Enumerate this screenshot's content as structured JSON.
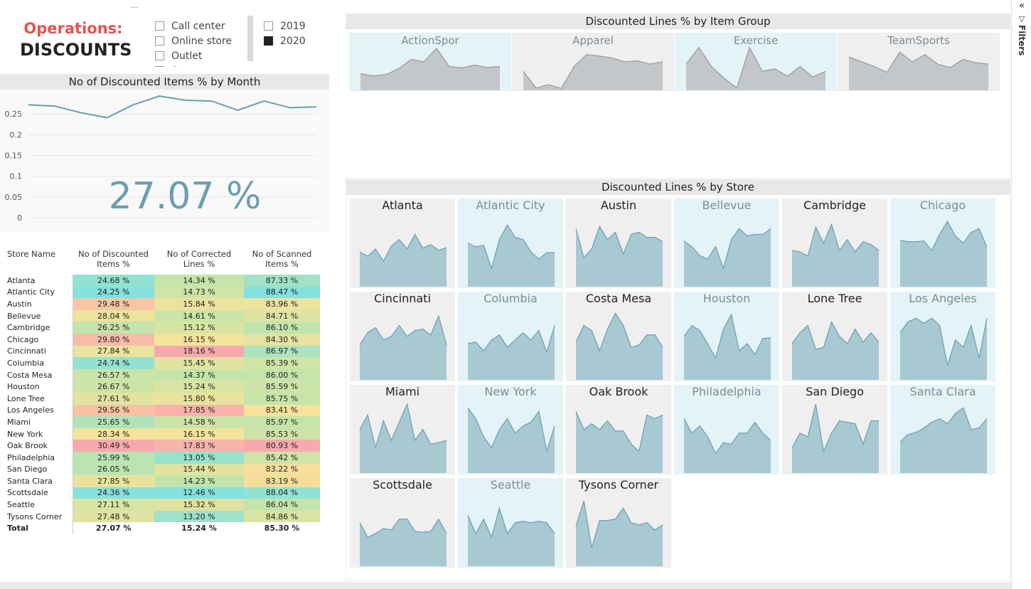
{
  "header": {
    "title_1": "Operations:",
    "title_2": "DISCOUNTS"
  },
  "channel_slicer": {
    "items": [
      "Call center",
      "Online store",
      "Outlet",
      "Store"
    ]
  },
  "year_slicer": {
    "items": [
      "2019",
      "2020"
    ],
    "selected": [
      false,
      true
    ]
  },
  "month_chart": {
    "title": "No of Discounted Items % by Month",
    "color": "#6a9fb0",
    "values": [
      0.272,
      0.269,
      0.253,
      0.241,
      0.272,
      0.293,
      0.283,
      0.281,
      0.259,
      0.281,
      0.265,
      0.267
    ],
    "ylim": [
      0,
      0.3
    ],
    "yticks": [
      0,
      0.05,
      0.1,
      0.15,
      0.2,
      0.25
    ],
    "kpi": "27.07 %"
  },
  "table": {
    "columns": [
      "Store Name",
      "No of Discounted Items %",
      "No of Corrected Lines %",
      "No of Scanned Items %"
    ],
    "rows": [
      [
        "Atlanta",
        "24.68 %",
        "14.34 %",
        "87.33 %"
      ],
      [
        "Atlantic City",
        "24.25 %",
        "14.73 %",
        "88.47 %"
      ],
      [
        "Austin",
        "29.48 %",
        "15.84 %",
        "83.96 %"
      ],
      [
        "Bellevue",
        "28.04 %",
        "14.61 %",
        "84.71 %"
      ],
      [
        "Cambridge",
        "26.25 %",
        "15.12 %",
        "86.10 %"
      ],
      [
        "Chicago",
        "29.80 %",
        "16.15 %",
        "84.30 %"
      ],
      [
        "Cincinnati",
        "27.84 %",
        "18.16 %",
        "86.97 %"
      ],
      [
        "Columbia",
        "24.74 %",
        "15.45 %",
        "85.39 %"
      ],
      [
        "Costa Mesa",
        "26.57 %",
        "14.37 %",
        "86.00 %"
      ],
      [
        "Houston",
        "26.67 %",
        "15.24 %",
        "85.59 %"
      ],
      [
        "Lone Tree",
        "27.61 %",
        "15.80 %",
        "85.75 %"
      ],
      [
        "Los Angeles",
        "29.56 %",
        "17.85 %",
        "83.41 %"
      ],
      [
        "Miami",
        "25.65 %",
        "14.58 %",
        "85.97 %"
      ],
      [
        "New York",
        "28.34 %",
        "16.15 %",
        "85.53 %"
      ],
      [
        "Oak Brook",
        "30.49 %",
        "17.83 %",
        "80.93 %"
      ],
      [
        "Philadelphia",
        "25.99 %",
        "13.05 %",
        "85.42 %"
      ],
      [
        "San Diego",
        "26.05 %",
        "15.44 %",
        "83.22 %"
      ],
      [
        "Santa Clara",
        "27.85 %",
        "14.23 %",
        "83.19 %"
      ],
      [
        "Scottsdale",
        "24.36 %",
        "12.46 %",
        "88.04 %"
      ],
      [
        "Seattle",
        "27.11 %",
        "15.32 %",
        "86.04 %"
      ],
      [
        "Tysons Corner",
        "27.48 %",
        "13.20 %",
        "84.86 %"
      ]
    ],
    "total": [
      "Total",
      "27.07 %",
      "15.24 %",
      "85.30 %"
    ],
    "color_scale": [
      "#84e1dd",
      "#c5e4a9",
      "#f6e39a",
      "#f8a9ae"
    ],
    "reverse_scale": [
      false,
      false,
      true
    ]
  },
  "item_group_chart": {
    "title": "Discounted Lines % by Item Group",
    "ylim": [
      0.1,
      0.2
    ],
    "fill": "#c3c7ca",
    "stroke": "#999999",
    "panels": [
      {
        "name": "ActionSpor",
        "background": "#e4f3f8",
        "values": [
          0.135,
          0.13,
          0.133,
          0.145,
          0.165,
          0.16,
          0.188,
          0.15,
          0.147,
          0.153,
          0.148,
          0.15
        ]
      },
      {
        "name": "Apparel",
        "background": "#efefef",
        "values": [
          0.14,
          0.105,
          0.112,
          0.104,
          0.15,
          0.175,
          0.172,
          0.168,
          0.16,
          0.162,
          0.155,
          0.16
        ]
      },
      {
        "name": "Exercise",
        "background": "#e4f3f8",
        "values": [
          0.155,
          0.19,
          0.15,
          0.125,
          0.105,
          0.19,
          0.14,
          0.145,
          0.13,
          0.15,
          0.128,
          0.14
        ]
      },
      {
        "name": "TeamSports",
        "background": "#efefef",
        "values": [
          0.17,
          0.16,
          0.15,
          0.138,
          0.18,
          0.16,
          0.175,
          0.155,
          0.148,
          0.165,
          0.158,
          0.155
        ]
      }
    ]
  },
  "store_chart": {
    "title": "Discounted Lines % by Store",
    "ylim": [
      0.1,
      0.2
    ],
    "fill": "#a8c8d2",
    "stroke": "#6a9fb0",
    "panels": [
      {
        "name": "Atlanta",
        "background": "#efefef",
        "values": [
          0.148,
          0.142,
          0.152,
          0.135,
          0.156,
          0.165,
          0.152,
          0.172,
          0.153,
          0.158,
          0.15,
          0.154
        ]
      },
      {
        "name": "Atlantic City",
        "background": "#e4f3f8",
        "values": [
          0.16,
          0.155,
          0.157,
          0.125,
          0.165,
          0.185,
          0.168,
          0.165,
          0.148,
          0.138,
          0.147,
          0.147
        ]
      },
      {
        "name": "Austin",
        "background": "#efefef",
        "values": [
          0.18,
          0.14,
          0.152,
          0.183,
          0.165,
          0.175,
          0.145,
          0.172,
          0.175,
          0.168,
          0.168,
          0.162
        ]
      },
      {
        "name": "Bellevue",
        "background": "#e4f3f8",
        "values": [
          0.163,
          0.155,
          0.143,
          0.138,
          0.155,
          0.125,
          0.165,
          0.18,
          0.17,
          0.172,
          0.172,
          0.18
        ]
      },
      {
        "name": "Cambridge",
        "background": "#efefef",
        "values": [
          0.15,
          0.148,
          0.142,
          0.182,
          0.16,
          0.186,
          0.15,
          0.165,
          0.148,
          0.162,
          0.158,
          0.15
        ]
      },
      {
        "name": "Chicago",
        "background": "#e4f3f8",
        "values": [
          0.164,
          0.162,
          0.162,
          0.163,
          0.15,
          0.172,
          0.19,
          0.17,
          0.16,
          0.175,
          0.18,
          0.155
        ]
      },
      {
        "name": "Cincinnati",
        "background": "#efefef",
        "values": [
          0.148,
          0.165,
          0.172,
          0.155,
          0.16,
          0.175,
          0.16,
          0.168,
          0.17,
          0.162,
          0.188,
          0.148
        ]
      },
      {
        "name": "Columbia",
        "background": "#e4f3f8",
        "values": [
          0.15,
          0.152,
          0.14,
          0.155,
          0.162,
          0.145,
          0.155,
          0.165,
          0.155,
          0.168,
          0.138,
          0.175
        ]
      },
      {
        "name": "Costa Mesa",
        "background": "#efefef",
        "values": [
          0.152,
          0.175,
          0.168,
          0.14,
          0.17,
          0.192,
          0.175,
          0.145,
          0.148,
          0.162,
          0.162,
          0.145
        ]
      },
      {
        "name": "Houston",
        "background": "#e4f3f8",
        "values": [
          0.16,
          0.175,
          0.168,
          0.15,
          0.13,
          0.17,
          0.19,
          0.14,
          0.15,
          0.135,
          0.157,
          0.158
        ]
      },
      {
        "name": "Lone Tree",
        "background": "#efefef",
        "values": [
          0.15,
          0.165,
          0.175,
          0.142,
          0.145,
          0.18,
          0.16,
          0.15,
          0.17,
          0.152,
          0.165,
          0.152
        ]
      },
      {
        "name": "Los Angeles",
        "background": "#e4f3f8",
        "values": [
          0.165,
          0.18,
          0.185,
          0.178,
          0.185,
          0.175,
          0.12,
          0.155,
          0.145,
          0.175,
          0.13,
          0.185
        ]
      },
      {
        "name": "Miami",
        "background": "#efefef",
        "values": [
          0.16,
          0.18,
          0.135,
          0.172,
          0.145,
          0.17,
          0.195,
          0.145,
          0.16,
          0.14,
          0.142,
          0.145
        ]
      },
      {
        "name": "New York",
        "background": "#e4f3f8",
        "values": [
          0.19,
          0.175,
          0.15,
          0.135,
          0.16,
          0.175,
          0.155,
          0.165,
          0.17,
          0.185,
          0.13,
          0.165
        ]
      },
      {
        "name": "Oak Brook",
        "background": "#efefef",
        "values": [
          0.185,
          0.16,
          0.168,
          0.16,
          0.172,
          0.158,
          0.158,
          0.14,
          0.13,
          0.18,
          0.175,
          0.18
        ]
      },
      {
        "name": "Philadelphia",
        "background": "#e4f3f8",
        "values": [
          0.175,
          0.155,
          0.165,
          0.15,
          0.127,
          0.142,
          0.14,
          0.155,
          0.155,
          0.17,
          0.155,
          0.145
        ]
      },
      {
        "name": "San Diego",
        "background": "#efefef",
        "values": [
          0.135,
          0.155,
          0.15,
          0.195,
          0.13,
          0.155,
          0.172,
          0.17,
          0.168,
          0.14,
          0.172,
          0.172
        ]
      },
      {
        "name": "Santa Clara",
        "background": "#e4f3f8",
        "values": [
          0.143,
          0.153,
          0.156,
          0.162,
          0.17,
          0.175,
          0.168,
          0.182,
          0.19,
          0.16,
          0.162,
          0.175
        ]
      },
      {
        "name": "Scottsdale",
        "background": "#efefef",
        "values": [
          0.16,
          0.14,
          0.145,
          0.152,
          0.15,
          0.165,
          0.165,
          0.148,
          0.147,
          0.148,
          0.165,
          0.145
        ]
      },
      {
        "name": "Seattle",
        "background": "#e4f3f8",
        "values": [
          0.17,
          0.145,
          0.165,
          0.14,
          0.18,
          0.145,
          0.16,
          0.162,
          0.16,
          0.162,
          0.16,
          0.145
        ]
      },
      {
        "name": "Tysons Corner",
        "background": "#efefef",
        "values": [
          0.155,
          0.19,
          0.125,
          0.163,
          0.163,
          0.165,
          0.18,
          0.16,
          0.157,
          0.16,
          0.15,
          0.157
        ]
      }
    ]
  },
  "filters_pane": {
    "label": "Filters"
  }
}
